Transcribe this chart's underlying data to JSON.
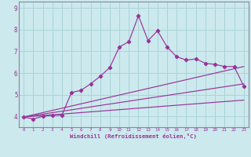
{
  "xlabel": "Windchill (Refroidissement éolien,°C)",
  "background_color": "#cce9ed",
  "grid_color": "#aad4d8",
  "line_color": "#993399",
  "spine_color": "#888899",
  "xlim": [
    -0.5,
    23.5
  ],
  "ylim": [
    3.5,
    9.3
  ],
  "x_ticks": [
    0,
    1,
    2,
    3,
    4,
    5,
    6,
    7,
    8,
    9,
    10,
    11,
    12,
    13,
    14,
    15,
    16,
    17,
    18,
    19,
    20,
    21,
    22,
    23
  ],
  "y_ticks": [
    4,
    5,
    6,
    7,
    8,
    9
  ],
  "series1_x": [
    0,
    1,
    2,
    3,
    4,
    5,
    6,
    7,
    8,
    9,
    10,
    11,
    12,
    13,
    14,
    15,
    16,
    17,
    18,
    19,
    20,
    21,
    22,
    23
  ],
  "series1_y": [
    3.97,
    3.88,
    4.0,
    4.05,
    4.05,
    5.1,
    5.2,
    5.5,
    5.85,
    6.25,
    7.2,
    7.45,
    8.65,
    7.5,
    7.95,
    7.2,
    6.75,
    6.6,
    6.65,
    6.45,
    6.4,
    6.3,
    6.3,
    5.4
  ],
  "line1_x": [
    0,
    23
  ],
  "line1_y": [
    3.97,
    6.3
  ],
  "line2_x": [
    0,
    23
  ],
  "line2_y": [
    3.97,
    5.5
  ],
  "line3_x": [
    0,
    23
  ],
  "line3_y": [
    3.97,
    4.75
  ]
}
